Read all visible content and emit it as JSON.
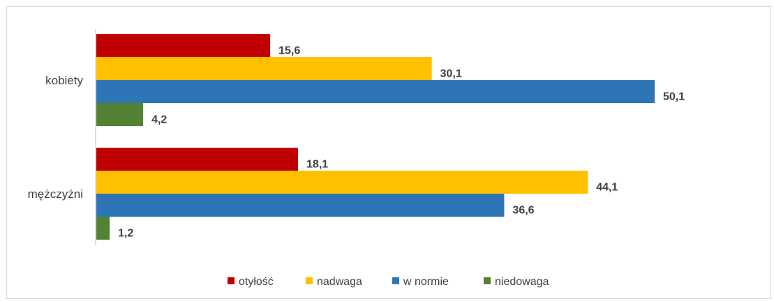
{
  "chart_data": {
    "type": "bar",
    "orientation": "horizontal",
    "categories": [
      "kobiety",
      "mężczyźni"
    ],
    "series": [
      {
        "name": "otyłość",
        "color": "#c00000",
        "values": [
          15.6,
          18.1
        ],
        "labels": [
          "15,6",
          "18,1"
        ]
      },
      {
        "name": "nadwaga",
        "color": "#ffc000",
        "values": [
          30.1,
          44.1
        ],
        "labels": [
          "30,1",
          "44,1"
        ]
      },
      {
        "name": "w normie",
        "color": "#2e75b6",
        "values": [
          50.1,
          36.6
        ],
        "labels": [
          "50,1",
          "36,6"
        ]
      },
      {
        "name": "niedowaga",
        "color": "#548235",
        "values": [
          4.2,
          1.2
        ],
        "labels": [
          "4,2",
          "1,2"
        ]
      }
    ],
    "xlim": [
      0,
      50.1
    ],
    "title": "",
    "xlabel": "",
    "ylabel": "",
    "grid": false,
    "legend_position": "bottom"
  }
}
